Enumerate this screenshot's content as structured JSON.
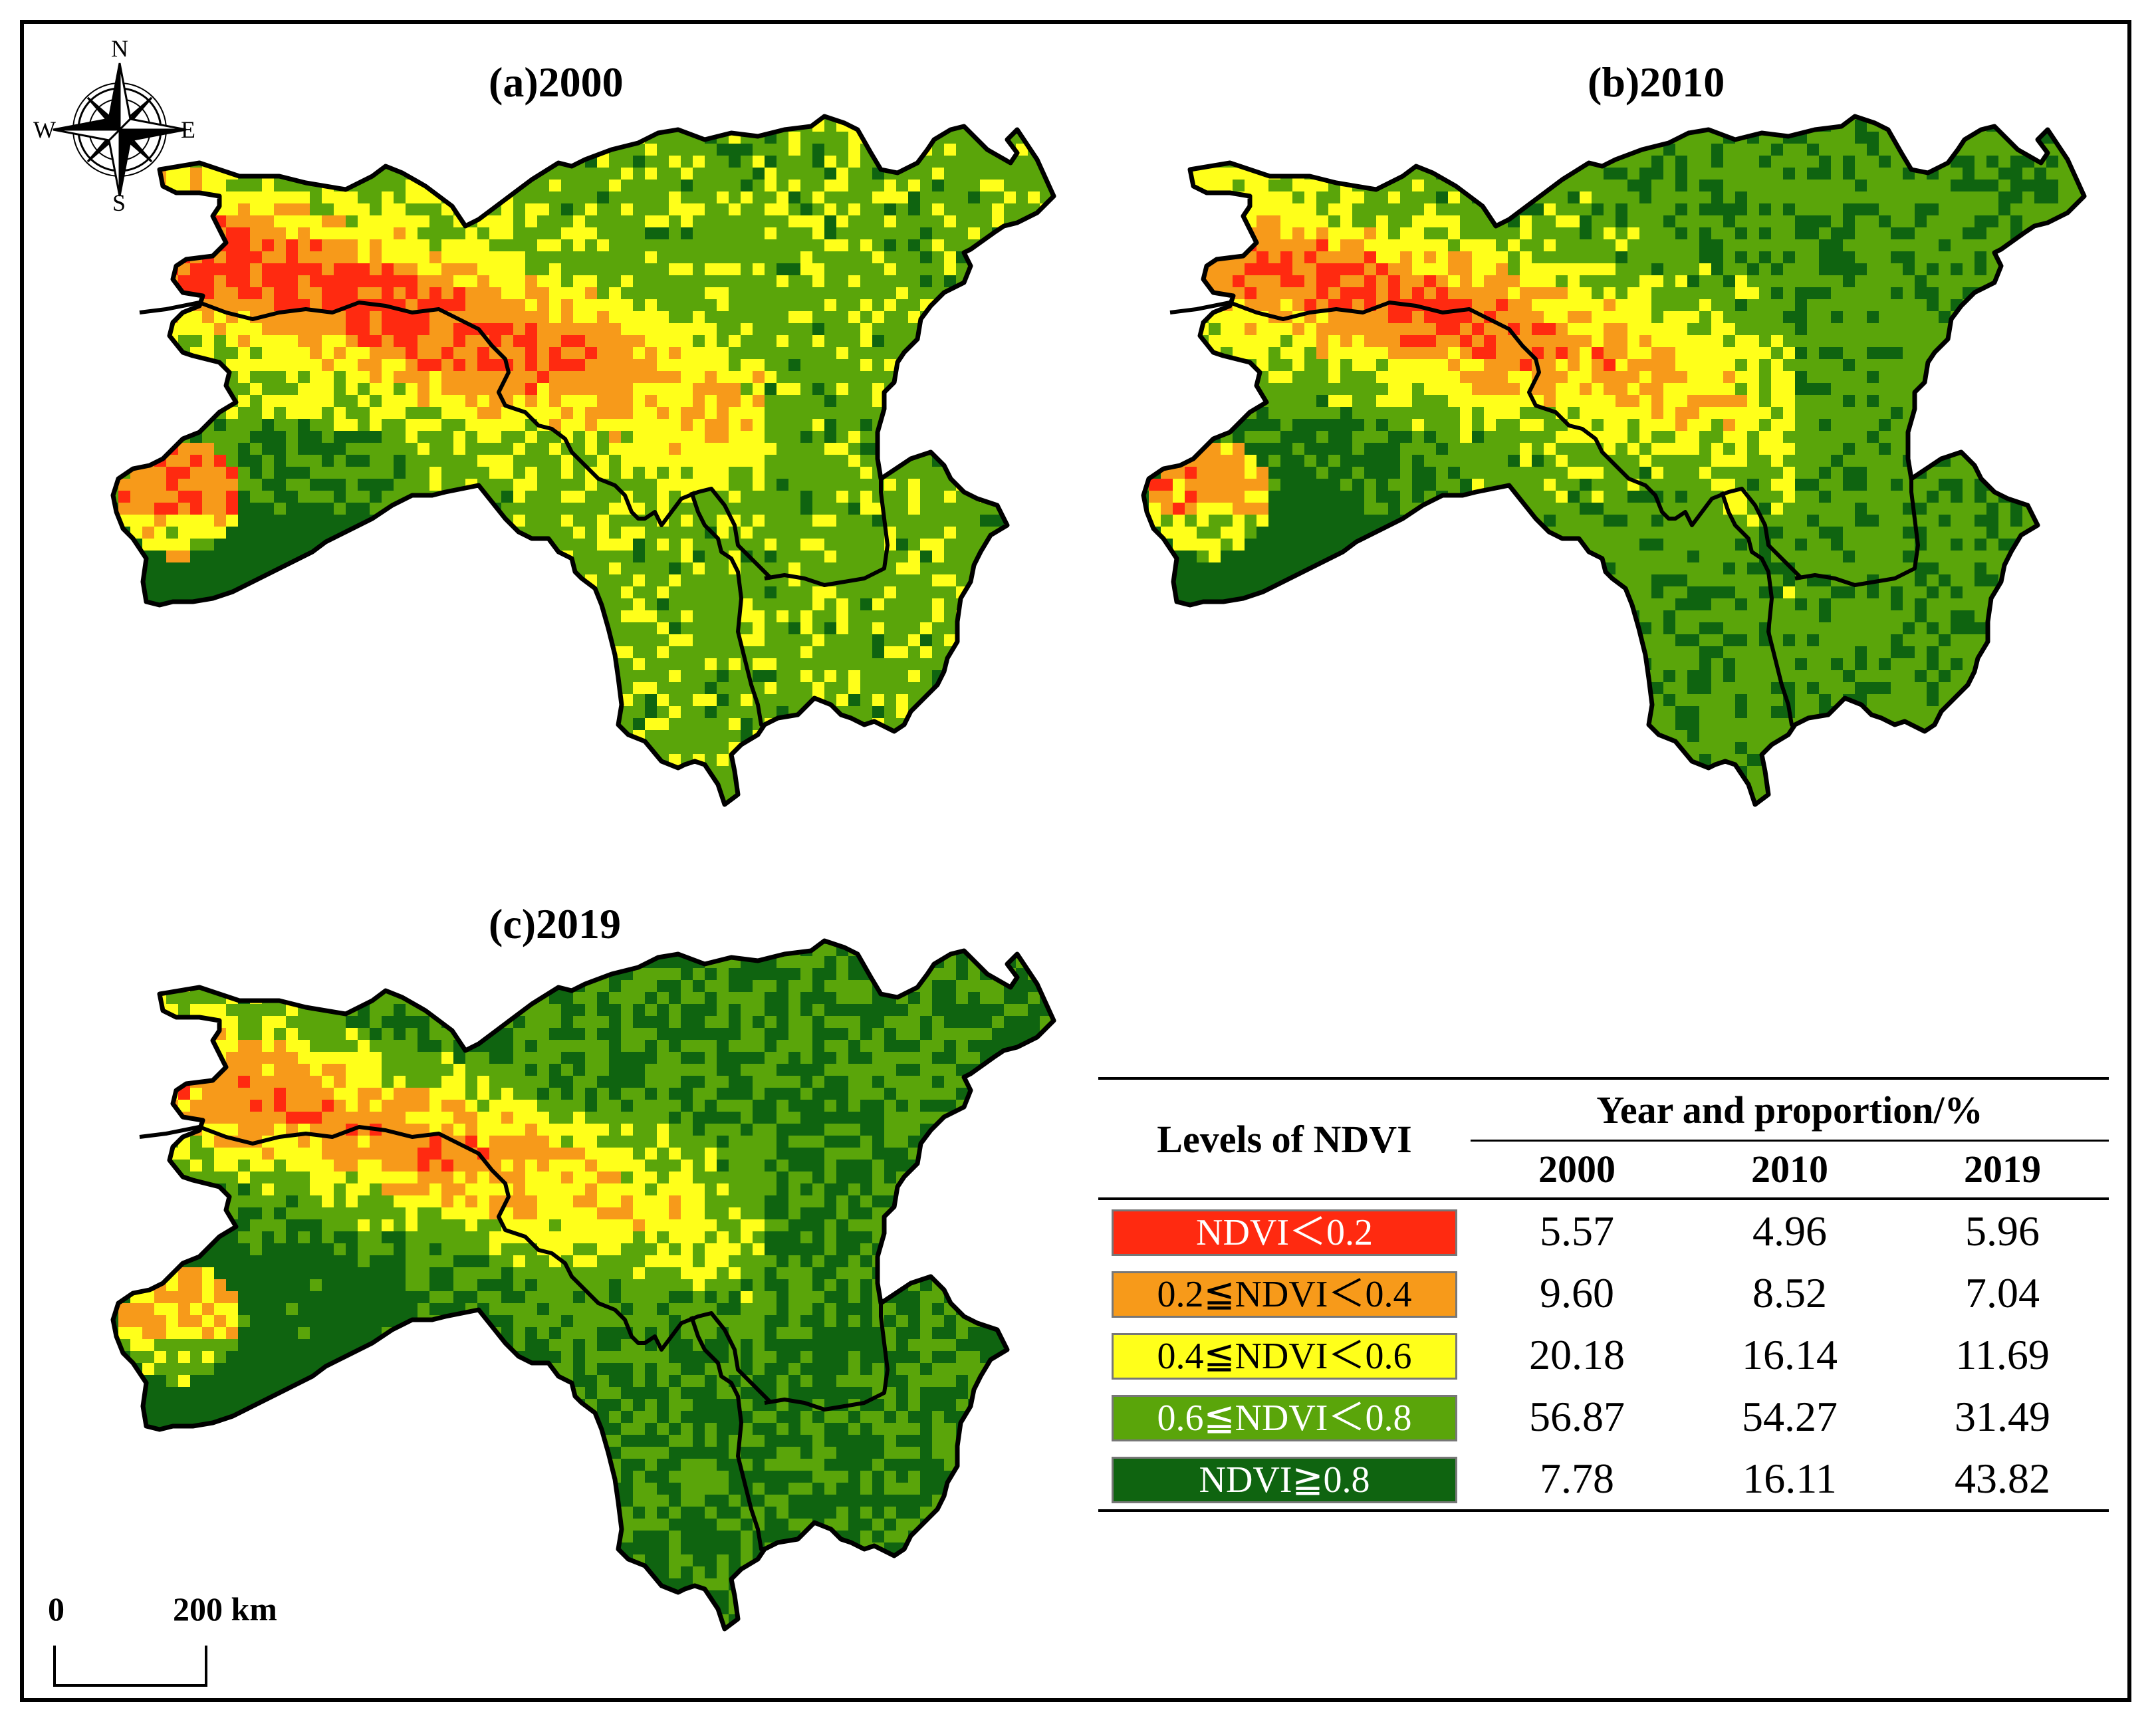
{
  "compass": {
    "north": "N",
    "south": "S",
    "east": "E",
    "west": "W",
    "icon": "compass-rose-icon"
  },
  "panels": [
    {
      "title": "(a)2000",
      "year": "2000"
    },
    {
      "title": "(b)2010",
      "year": "2010"
    },
    {
      "title": "(c)2019",
      "year": "2019"
    }
  ],
  "scale_bar": {
    "start_label": "0",
    "end_label": "200",
    "unit": "km"
  },
  "colors": {
    "level1": "#ff2a10",
    "level2": "#f79a1a",
    "level3": "#ffff1a",
    "level4": "#5aa50a",
    "level5": "#0f6410",
    "boundary": "#000000"
  },
  "table": {
    "row_header": "Levels of NDVI",
    "group_header": "Year and proportion/%",
    "years": [
      "2000",
      "2010",
      "2019"
    ],
    "rows": [
      {
        "label": "NDVI＜0.2",
        "values": [
          "5.57",
          "4.96",
          "5.96"
        ],
        "color": "#ff2a10",
        "text_color": "#ffffff"
      },
      {
        "label": "0.2≦NDVI＜0.4",
        "values": [
          "9.60",
          "8.52",
          "7.04"
        ],
        "color": "#f79a1a",
        "text_color": "#000000"
      },
      {
        "label": "0.4≦NDVI＜0.6",
        "values": [
          "20.18",
          "16.14",
          "11.69"
        ],
        "color": "#ffff1a",
        "text_color": "#000000"
      },
      {
        "label": "0.6≦NDVI＜0.8",
        "values": [
          "56.87",
          "54.27",
          "31.49"
        ],
        "color": "#5aa50a",
        "text_color": "#ffffff"
      },
      {
        "label": "NDVI≧0.8",
        "values": [
          "7.78",
          "16.11",
          "43.82"
        ],
        "color": "#0f6410",
        "text_color": "#ffffff"
      }
    ]
  }
}
